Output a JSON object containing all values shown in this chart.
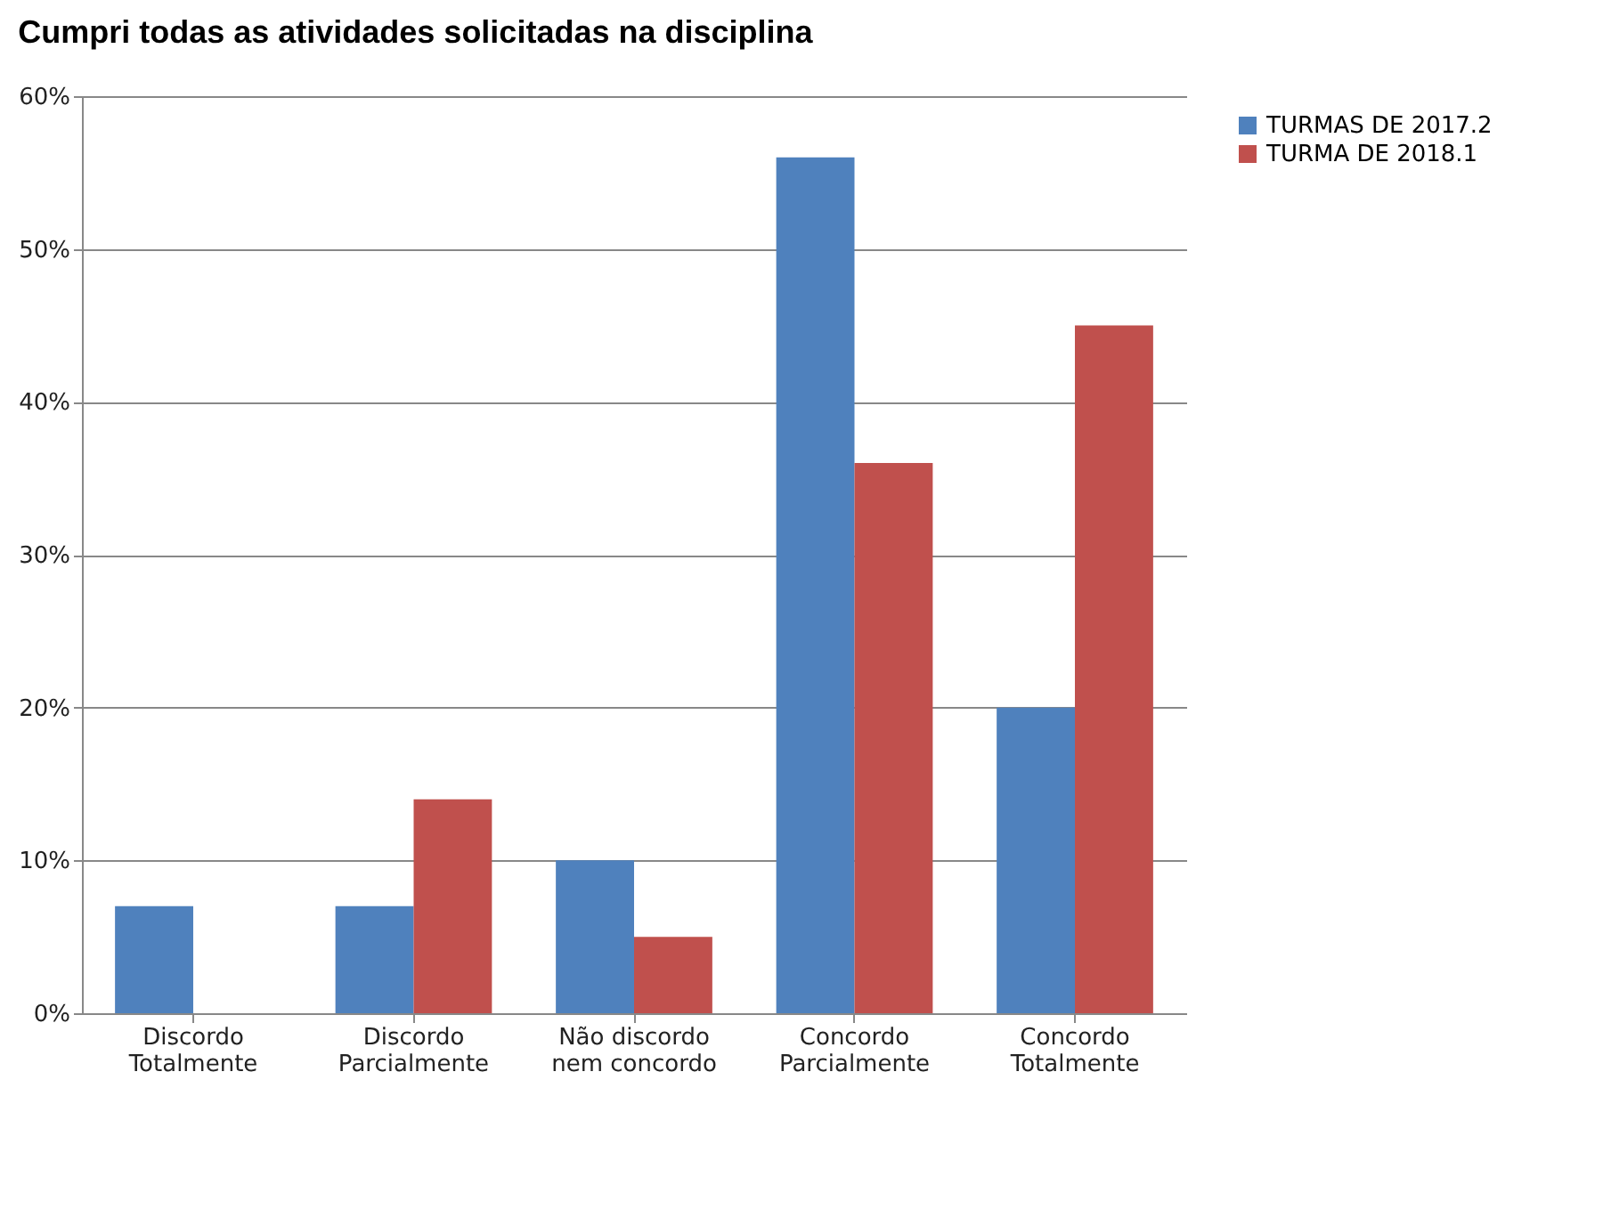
{
  "chart_data": {
    "type": "bar",
    "title": "Cumpri todas as atividades solicitadas na disciplina",
    "categories": [
      "Discordo Totalmente",
      "Discordo Parcialmente",
      "Não discordo nem concordo",
      "Concordo Parcialmente",
      "Concordo Totalmente"
    ],
    "series": [
      {
        "name": "TURMAS DE 2017.2",
        "color": "#4f81bd",
        "values": [
          7,
          7,
          10,
          56,
          20
        ]
      },
      {
        "name": "TURMA DE 2018.1",
        "color": "#c0504d",
        "values": [
          0,
          14,
          5,
          36,
          45
        ]
      }
    ],
    "ylim": [
      0,
      60
    ],
    "yticks": [
      {
        "value": 0,
        "label": "0%"
      },
      {
        "value": 10,
        "label": "10%"
      },
      {
        "value": 20,
        "label": "20%"
      },
      {
        "value": 30,
        "label": "30%"
      },
      {
        "value": 40,
        "label": "40%"
      },
      {
        "value": 50,
        "label": "50%"
      },
      {
        "value": 60,
        "label": "60%"
      }
    ],
    "grid": "y",
    "legend": "right"
  }
}
